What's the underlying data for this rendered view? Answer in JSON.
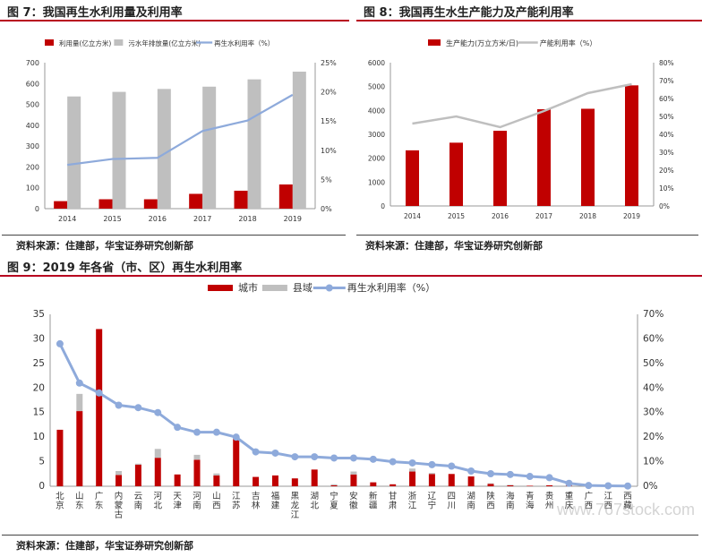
{
  "fig7": {
    "title": "图 7：我国再生水利用量及利用率",
    "source": "资料来源：住建部，华宝证券研究创新部"
  },
  "fig8": {
    "title": "图 8：我国再生水生产能力及产能利用率",
    "source": "资料来源：住建部，华宝证券研究创新部"
  },
  "fig9": {
    "title": "图 9：2019 年各省（市、区）再生水利用率",
    "source": "资料来源：住建部，华宝证券研究创新部"
  },
  "watermark": "www.767stock.com",
  "colors": {
    "red": "#c00000",
    "gray": "#bfbfbf",
    "blue": "#8eaadb",
    "lightgray": "#bfbfbf"
  },
  "chart_data": [
    {
      "type": "bar",
      "categories": [
        "2014",
        "2015",
        "2016",
        "2017",
        "2018",
        "2019"
      ],
      "series": [
        {
          "name": "利用量(亿立方米)",
          "kind": "bar",
          "axis": "left",
          "values": [
            36,
            45,
            45,
            71,
            86,
            116
          ]
        },
        {
          "name": "污水年排放量(亿立方米)",
          "kind": "bar",
          "axis": "left",
          "values": [
            538,
            560,
            574,
            585,
            620,
            657
          ]
        },
        {
          "name": "再生水利用率（%）",
          "kind": "line",
          "axis": "right",
          "values": [
            7.5,
            8.5,
            8.7,
            13.3,
            15.1,
            19.5
          ]
        }
      ],
      "yleft": {
        "lim": [
          0,
          700
        ],
        "ticks": [
          "0",
          "100",
          "200",
          "300",
          "400",
          "500",
          "600",
          "700"
        ]
      },
      "yright": {
        "lim": [
          0,
          25
        ],
        "ticks": [
          "0%",
          "5%",
          "10%",
          "15%",
          "20%",
          "25%"
        ]
      }
    },
    {
      "type": "bar",
      "categories": [
        "2014",
        "2015",
        "2016",
        "2017",
        "2018",
        "2019"
      ],
      "series": [
        {
          "name": "生产能力(万立方米/日)",
          "kind": "bar",
          "axis": "left",
          "values": [
            2330,
            2650,
            3150,
            4050,
            4070,
            5050
          ]
        },
        {
          "name": "产能利用率（%）",
          "kind": "line",
          "axis": "right",
          "values": [
            46,
            50,
            44,
            53,
            63,
            68
          ]
        }
      ],
      "yleft": {
        "lim": [
          0,
          6000
        ],
        "ticks": [
          "0",
          "1000",
          "2000",
          "3000",
          "4000",
          "5000",
          "6000"
        ]
      },
      "yright": {
        "lim": [
          0,
          80
        ],
        "ticks": [
          "0%",
          "10%",
          "20%",
          "30%",
          "40%",
          "50%",
          "60%",
          "70%",
          "80%"
        ]
      }
    },
    {
      "type": "bar",
      "categories": [
        "北京",
        "山东",
        "广东",
        "内蒙古",
        "云南",
        "河北",
        "天津",
        "河南",
        "山西",
        "江苏",
        "吉林",
        "福建",
        "黑龙江",
        "湖北",
        "宁夏",
        "安徽",
        "新疆",
        "甘肃",
        "浙江",
        "辽宁",
        "四川",
        "湖南",
        "陕西",
        "海南",
        "青海",
        "贵州",
        "重庆",
        "广西",
        "江西",
        "西藏"
      ],
      "series": [
        {
          "name": "城市",
          "kind": "bar",
          "axis": "left",
          "stack": "s",
          "values": [
            11.5,
            15.3,
            32,
            2.3,
            4.4,
            5.8,
            2.4,
            5.4,
            2.2,
            9.7,
            1.9,
            2.2,
            1.6,
            3.4,
            0.2,
            2.4,
            0.8,
            0.4,
            3.0,
            2.5,
            2.5,
            2.0,
            0.5,
            0.2,
            0.1,
            0.2,
            0.1,
            0.1,
            0.1,
            0
          ]
        },
        {
          "name": "县域",
          "kind": "bar",
          "axis": "left",
          "stack": "s",
          "values": [
            0,
            3.5,
            0,
            0.8,
            0.2,
            1.8,
            0,
            1.0,
            0.4,
            0,
            0,
            0,
            0,
            0,
            0.2,
            0.6,
            0,
            0,
            0.6,
            0.2,
            0,
            0,
            0.1,
            0.1,
            0,
            0,
            0,
            0,
            0,
            0
          ]
        },
        {
          "name": "再生水利用率（%）",
          "kind": "line",
          "axis": "right",
          "values": [
            58,
            42,
            38,
            33,
            32,
            30,
            24,
            22,
            22,
            20,
            14,
            13.5,
            12,
            12,
            11.5,
            11.5,
            11,
            10,
            9.5,
            8.8,
            8.2,
            6.2,
            5.1,
            4.8,
            4,
            3.5,
            1.2,
            0.3,
            0.2,
            0.1
          ]
        }
      ],
      "yleft": {
        "lim": [
          0,
          35
        ],
        "ticks": [
          "0",
          "5",
          "10",
          "15",
          "20",
          "25",
          "30",
          "35"
        ]
      },
      "yright": {
        "lim": [
          0,
          70
        ],
        "ticks": [
          "0%",
          "10%",
          "20%",
          "30%",
          "40%",
          "50%",
          "60%",
          "70%"
        ]
      }
    }
  ]
}
